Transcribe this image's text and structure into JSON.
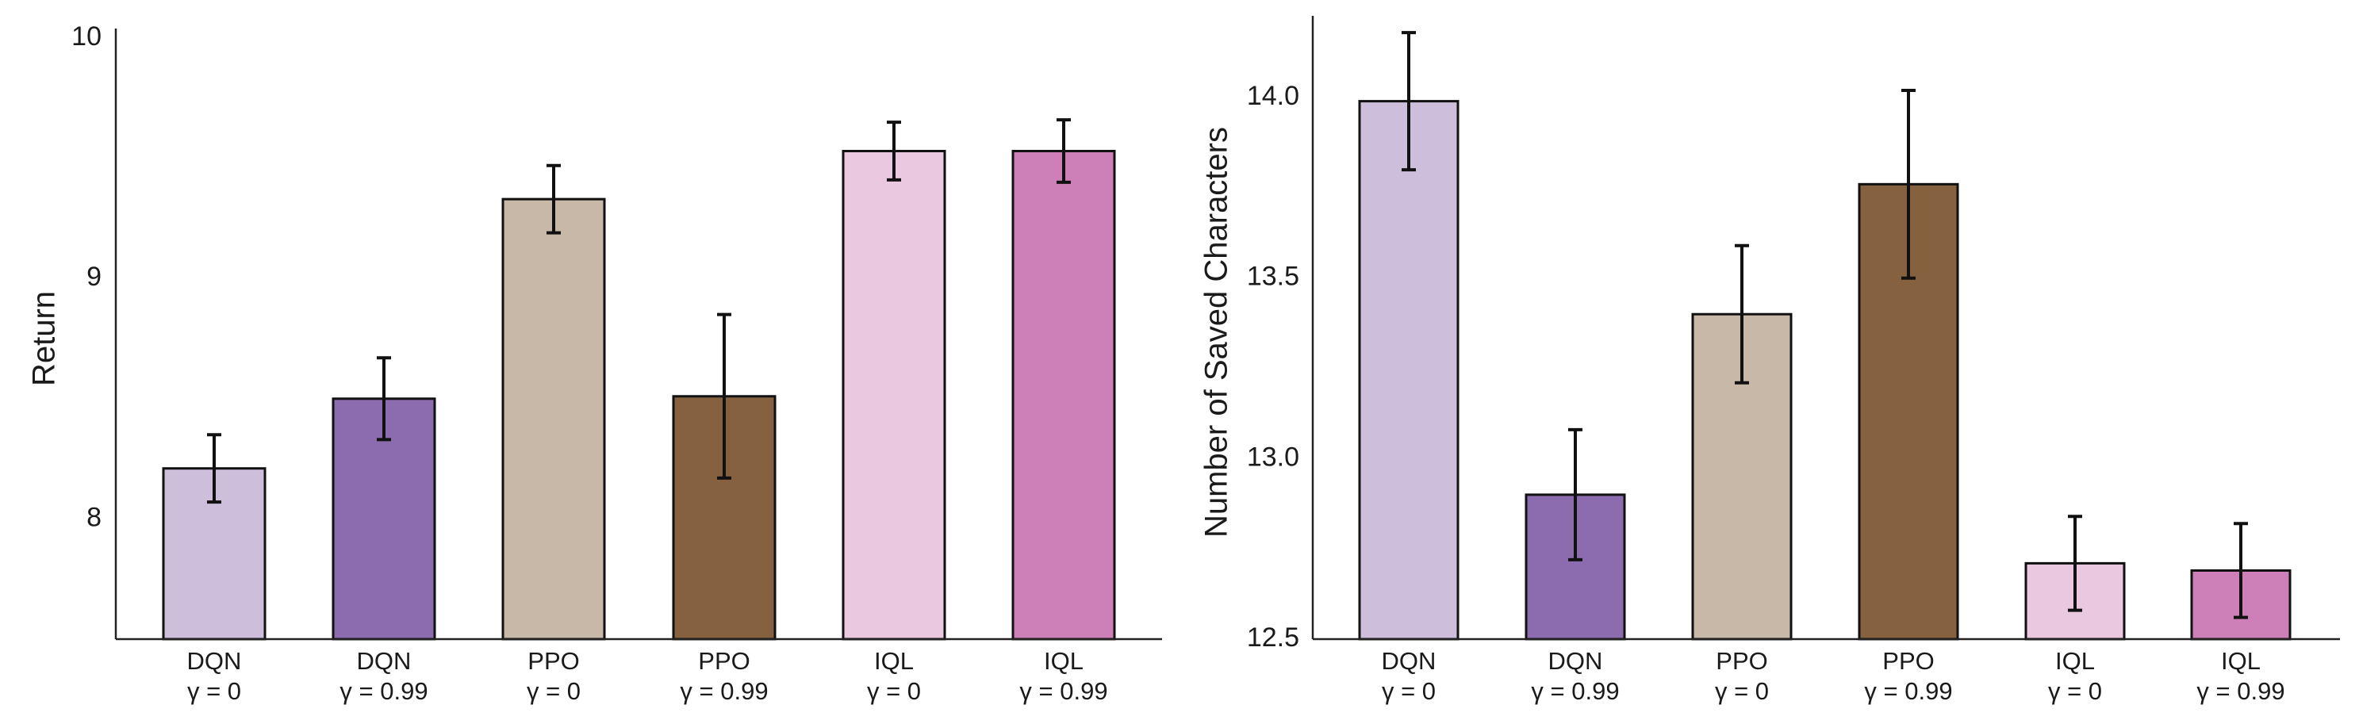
{
  "chart_data": [
    {
      "type": "bar",
      "ylabel": "Return",
      "xlabel": "",
      "title": "",
      "ylim": [
        7.5,
        10.0
      ],
      "yticks": [
        8,
        9,
        10
      ],
      "ytick_labels": [
        "8",
        "9",
        "10"
      ],
      "categories": [
        {
          "algo": "DQN",
          "gamma": "γ = 0"
        },
        {
          "algo": "DQN",
          "gamma": "γ = 0.99"
        },
        {
          "algo": "PPO",
          "gamma": "γ = 0"
        },
        {
          "algo": "PPO",
          "gamma": "γ = 0.99"
        },
        {
          "algo": "IQL",
          "gamma": "γ = 0"
        },
        {
          "algo": "IQL",
          "gamma": "γ = 0.99"
        }
      ],
      "values": [
        8.21,
        8.5,
        9.33,
        8.51,
        9.53,
        9.53
      ],
      "error": [
        0.14,
        0.17,
        0.14,
        0.34,
        0.12,
        0.13
      ],
      "colors": [
        "#cdbedc",
        "#8c6caf",
        "#c8b8a8",
        "#856140",
        "#e9c8e0",
        "#cd80b8"
      ]
    },
    {
      "type": "bar",
      "ylabel": "Number of Saved Characters",
      "xlabel": "",
      "title": "",
      "ylim": [
        12.5,
        14.2
      ],
      "yticks": [
        12.5,
        13.0,
        13.5,
        14.0
      ],
      "ytick_labels": [
        "12.5",
        "13.0",
        "13.5",
        "14.0"
      ],
      "categories": [
        {
          "algo": "DQN",
          "gamma": "γ = 0"
        },
        {
          "algo": "DQN",
          "gamma": "γ = 0.99"
        },
        {
          "algo": "PPO",
          "gamma": "γ = 0"
        },
        {
          "algo": "PPO",
          "gamma": "γ = 0.99"
        },
        {
          "algo": "IQL",
          "gamma": "γ = 0"
        },
        {
          "algo": "IQL",
          "gamma": "γ = 0.99"
        }
      ],
      "values": [
        13.99,
        12.9,
        13.4,
        13.76,
        12.71,
        12.69
      ],
      "error": [
        0.19,
        0.18,
        0.19,
        0.26,
        0.13,
        0.13
      ],
      "colors": [
        "#cdbedc",
        "#8c6caf",
        "#c8b8a8",
        "#856140",
        "#e9c8e0",
        "#cd80b8"
      ]
    }
  ]
}
